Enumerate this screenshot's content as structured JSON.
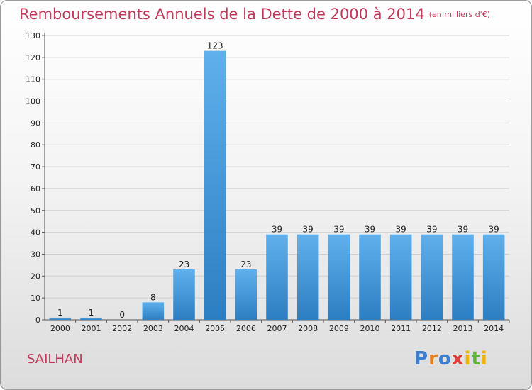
{
  "header": {
    "title": "Remboursements Annuels de la Dette de 2000 à 2014",
    "unit": "(en milliers d'€)"
  },
  "commune": "SAILHAN",
  "logo": "Proxiti",
  "colors": {
    "title": "#c0395a",
    "bar_top": "#5fb0ec",
    "bar_bottom": "#2c7ec2",
    "grid": "#d0d0d0"
  },
  "chart_data": {
    "type": "bar",
    "title": "Remboursements Annuels de la Dette de 2000 à 2014",
    "xlabel": "",
    "ylabel": "",
    "categories": [
      "2000",
      "2001",
      "2002",
      "2003",
      "2004",
      "2005",
      "2006",
      "2007",
      "2008",
      "2009",
      "2010",
      "2011",
      "2012",
      "2013",
      "2014"
    ],
    "values": [
      1,
      1,
      0,
      8,
      23,
      123,
      23,
      39,
      39,
      39,
      39,
      39,
      39,
      39,
      39
    ],
    "ylim": [
      0,
      130
    ],
    "yticks": [
      0,
      10,
      20,
      30,
      40,
      50,
      60,
      70,
      80,
      90,
      100,
      110,
      120,
      130
    ],
    "grid": true,
    "data_labels": true
  }
}
